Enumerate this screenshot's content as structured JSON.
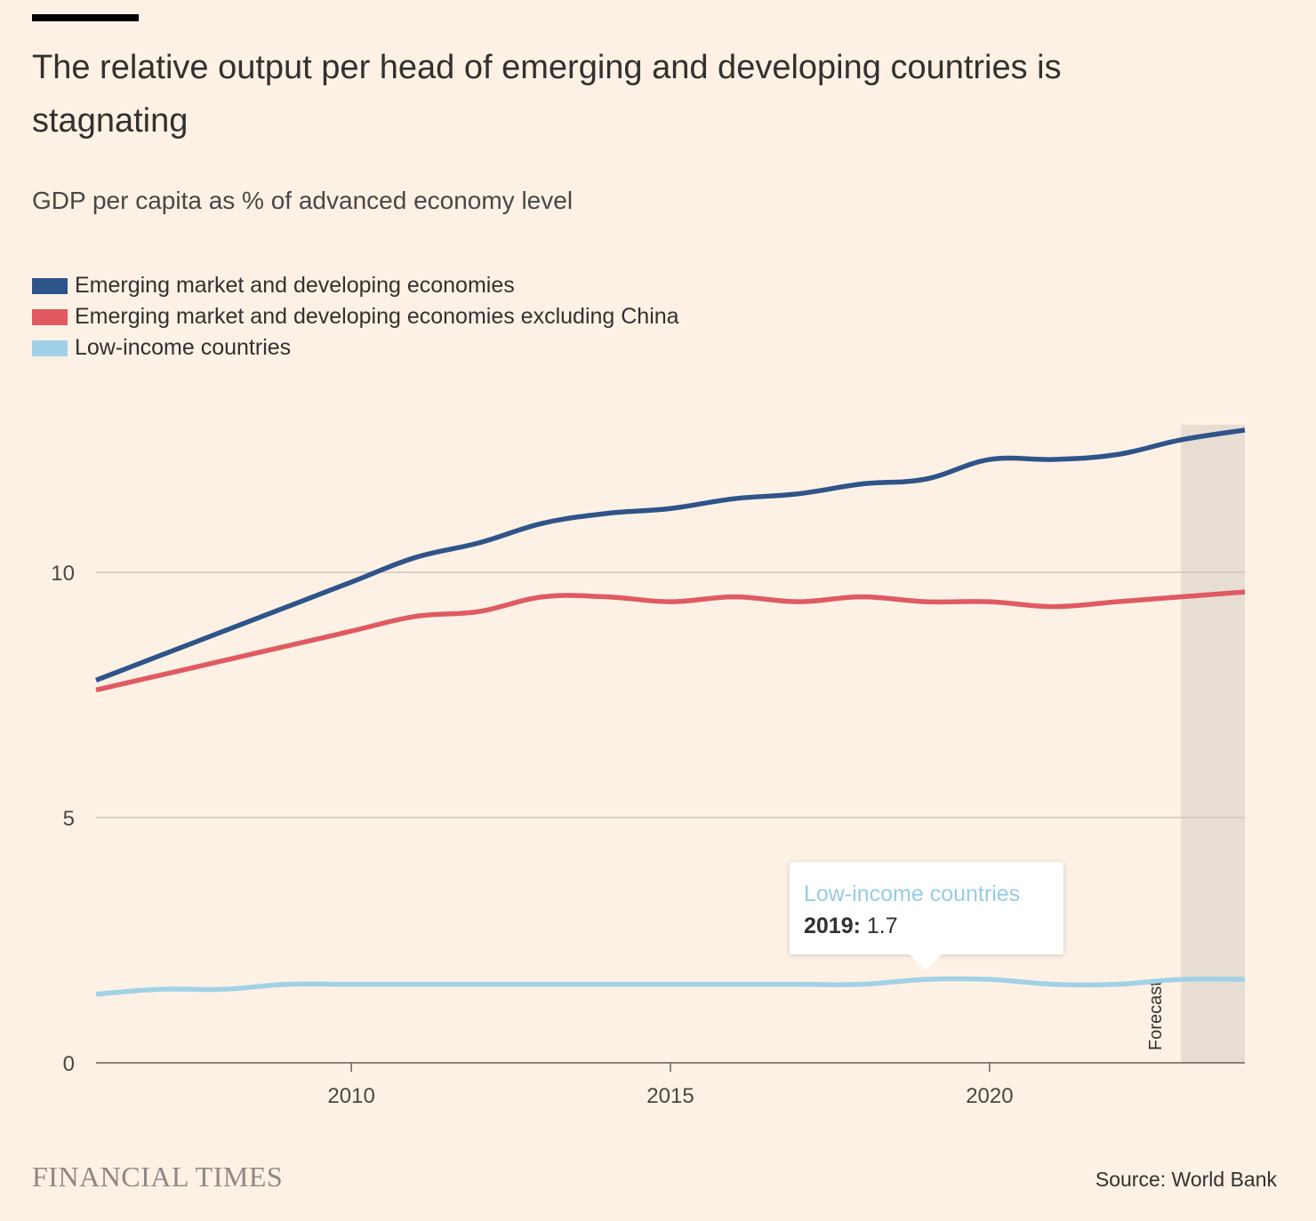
{
  "header": {
    "title": "The relative output per head of emerging and developing countries is stagnating",
    "subtitle": "GDP per capita as % of advanced economy level"
  },
  "legend": [
    {
      "label": "Emerging market and developing economies",
      "color": "#2e5489"
    },
    {
      "label": "Emerging market and developing economies excluding China",
      "color": "#e05a61"
    },
    {
      "label": "Low-income countries",
      "color": "#a1d1e6"
    }
  ],
  "tooltip": {
    "series": "Low-income countries",
    "year": "2019:",
    "value": "1.7"
  },
  "footer": {
    "logo": "FINANCIAL TIMES",
    "source": "Source: World Bank"
  },
  "chart_data": {
    "type": "line",
    "title": "The relative output per head of emerging and developing countries is stagnating",
    "subtitle": "GDP per capita as % of advanced economy level",
    "xlabel": "",
    "ylabel": "",
    "xlim": [
      2006,
      2024
    ],
    "ylim": [
      0,
      13
    ],
    "x_ticks": [
      2010,
      2015,
      2020
    ],
    "y_ticks": [
      0,
      5,
      10
    ],
    "grid": "horizontal",
    "legend_position": "top-left",
    "forecast": {
      "label": "Forecast",
      "start": 2023,
      "end": 2024
    },
    "x": [
      2006,
      2007,
      2008,
      2009,
      2010,
      2011,
      2012,
      2013,
      2014,
      2015,
      2016,
      2017,
      2018,
      2019,
      2020,
      2021,
      2022,
      2023,
      2024
    ],
    "series": [
      {
        "name": "Emerging market and developing economies",
        "color": "#2e5489",
        "values": [
          7.8,
          8.3,
          8.8,
          9.3,
          9.8,
          10.3,
          10.6,
          11.0,
          11.2,
          11.3,
          11.5,
          11.6,
          11.8,
          11.9,
          12.3,
          12.3,
          12.4,
          12.7,
          12.9
        ]
      },
      {
        "name": "Emerging market and developing economies excluding China",
        "color": "#e05a61",
        "values": [
          7.6,
          7.9,
          8.2,
          8.5,
          8.8,
          9.1,
          9.2,
          9.5,
          9.5,
          9.4,
          9.5,
          9.4,
          9.5,
          9.4,
          9.4,
          9.3,
          9.4,
          9.5,
          9.6
        ]
      },
      {
        "name": "Low-income countries",
        "color": "#a1d1e6",
        "values": [
          1.4,
          1.5,
          1.5,
          1.6,
          1.6,
          1.6,
          1.6,
          1.6,
          1.6,
          1.6,
          1.6,
          1.6,
          1.6,
          1.7,
          1.7,
          1.6,
          1.6,
          1.7,
          1.7
        ]
      }
    ]
  }
}
